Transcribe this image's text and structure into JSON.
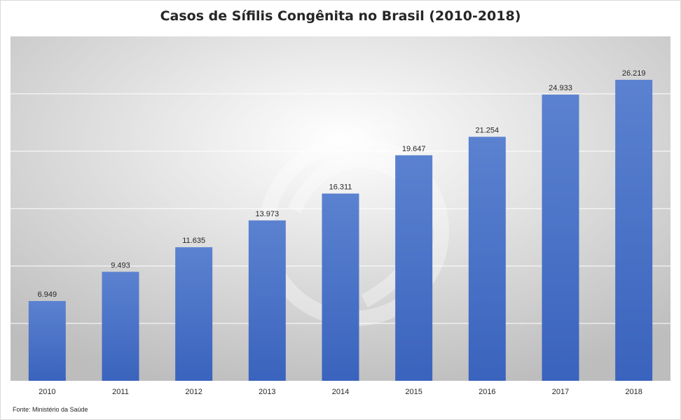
{
  "chart_data": {
    "type": "bar",
    "title": "Casos de Sífilis Congênita no Brasil (2010-2018)",
    "xlabel": "",
    "ylabel": "",
    "categories": [
      "2010",
      "2011",
      "2012",
      "2013",
      "2014",
      "2015",
      "2016",
      "2017",
      "2018"
    ],
    "values": [
      6949,
      9493,
      11635,
      13973,
      16311,
      19647,
      21254,
      24933,
      26219
    ],
    "data_labels": [
      "6.949",
      "9.493",
      "11.635",
      "13.973",
      "16.311",
      "19.647",
      "21.254",
      "24.933",
      "26.219"
    ],
    "ylim": [
      0,
      30000
    ],
    "grid": true,
    "legend": "none",
    "bar_color": "#4472C4"
  },
  "source_note": "Fonte: Ministério da Saúde"
}
